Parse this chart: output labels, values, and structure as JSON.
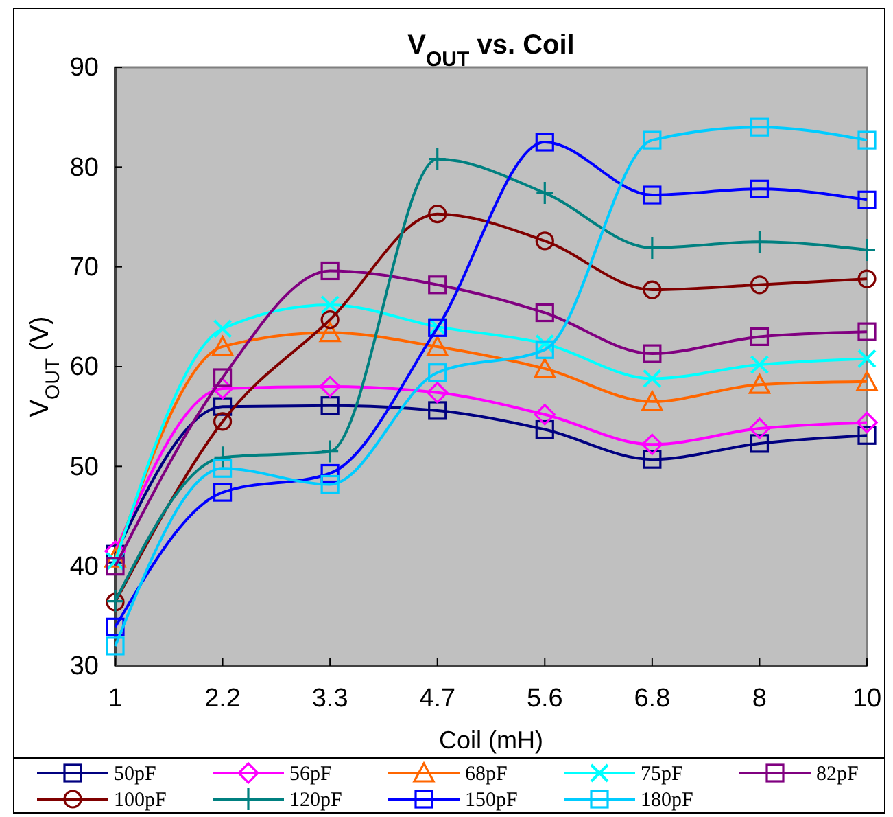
{
  "chart_data": {
    "type": "line",
    "title": "V$_{OUT}$ vs. Coil",
    "xlabel": "Coil (mH)",
    "ylabel": "V$_{OUT}$ (V)",
    "categories": [
      "1",
      "2.2",
      "3.3",
      "4.7",
      "5.6",
      "6.8",
      "8",
      "10"
    ],
    "ylim": [
      30,
      90
    ],
    "yticks": [
      30,
      40,
      50,
      60,
      70,
      80,
      90
    ],
    "grid": false,
    "legend": "bottom",
    "line_style": "solid",
    "series": [
      {
        "name": "50pF",
        "color": "#000080",
        "marker": "square",
        "values": [
          41.2,
          56.0,
          56.1,
          55.6,
          53.7,
          50.7,
          52.3,
          53.1
        ]
      },
      {
        "name": "56pF",
        "color": "#ff00ff",
        "marker": "diamond",
        "values": [
          41.5,
          57.8,
          58.0,
          57.4,
          55.2,
          52.2,
          53.8,
          54.4
        ]
      },
      {
        "name": "68pF",
        "color": "#ff6600",
        "marker": "triangle",
        "values": [
          40.8,
          62.0,
          63.4,
          62.0,
          59.8,
          56.5,
          58.2,
          58.5
        ]
      },
      {
        "name": "75pF",
        "color": "#00ffff",
        "marker": "cross",
        "values": [
          40.5,
          63.8,
          66.2,
          64.0,
          62.3,
          58.8,
          60.2,
          60.8
        ]
      },
      {
        "name": "82pF",
        "color": "#800080",
        "marker": "square",
        "values": [
          40.0,
          58.9,
          69.6,
          68.2,
          65.4,
          61.3,
          63.0,
          63.5
        ]
      },
      {
        "name": "100pF",
        "color": "#800000",
        "marker": "circle",
        "values": [
          36.4,
          54.5,
          64.7,
          75.3,
          72.6,
          67.7,
          68.2,
          68.8
        ]
      },
      {
        "name": "120pF",
        "color": "#008080",
        "marker": "plus",
        "values": [
          36.5,
          50.9,
          51.5,
          80.8,
          77.4,
          71.9,
          72.5,
          71.7
        ]
      },
      {
        "name": "150pF",
        "color": "#0000ff",
        "marker": "square",
        "values": [
          33.9,
          47.4,
          49.3,
          63.9,
          82.5,
          77.2,
          77.8,
          76.7
        ]
      },
      {
        "name": "180pF",
        "color": "#00ccff",
        "marker": "square",
        "values": [
          32.0,
          49.8,
          48.2,
          59.4,
          61.7,
          82.7,
          84.0,
          82.7
        ]
      }
    ]
  }
}
